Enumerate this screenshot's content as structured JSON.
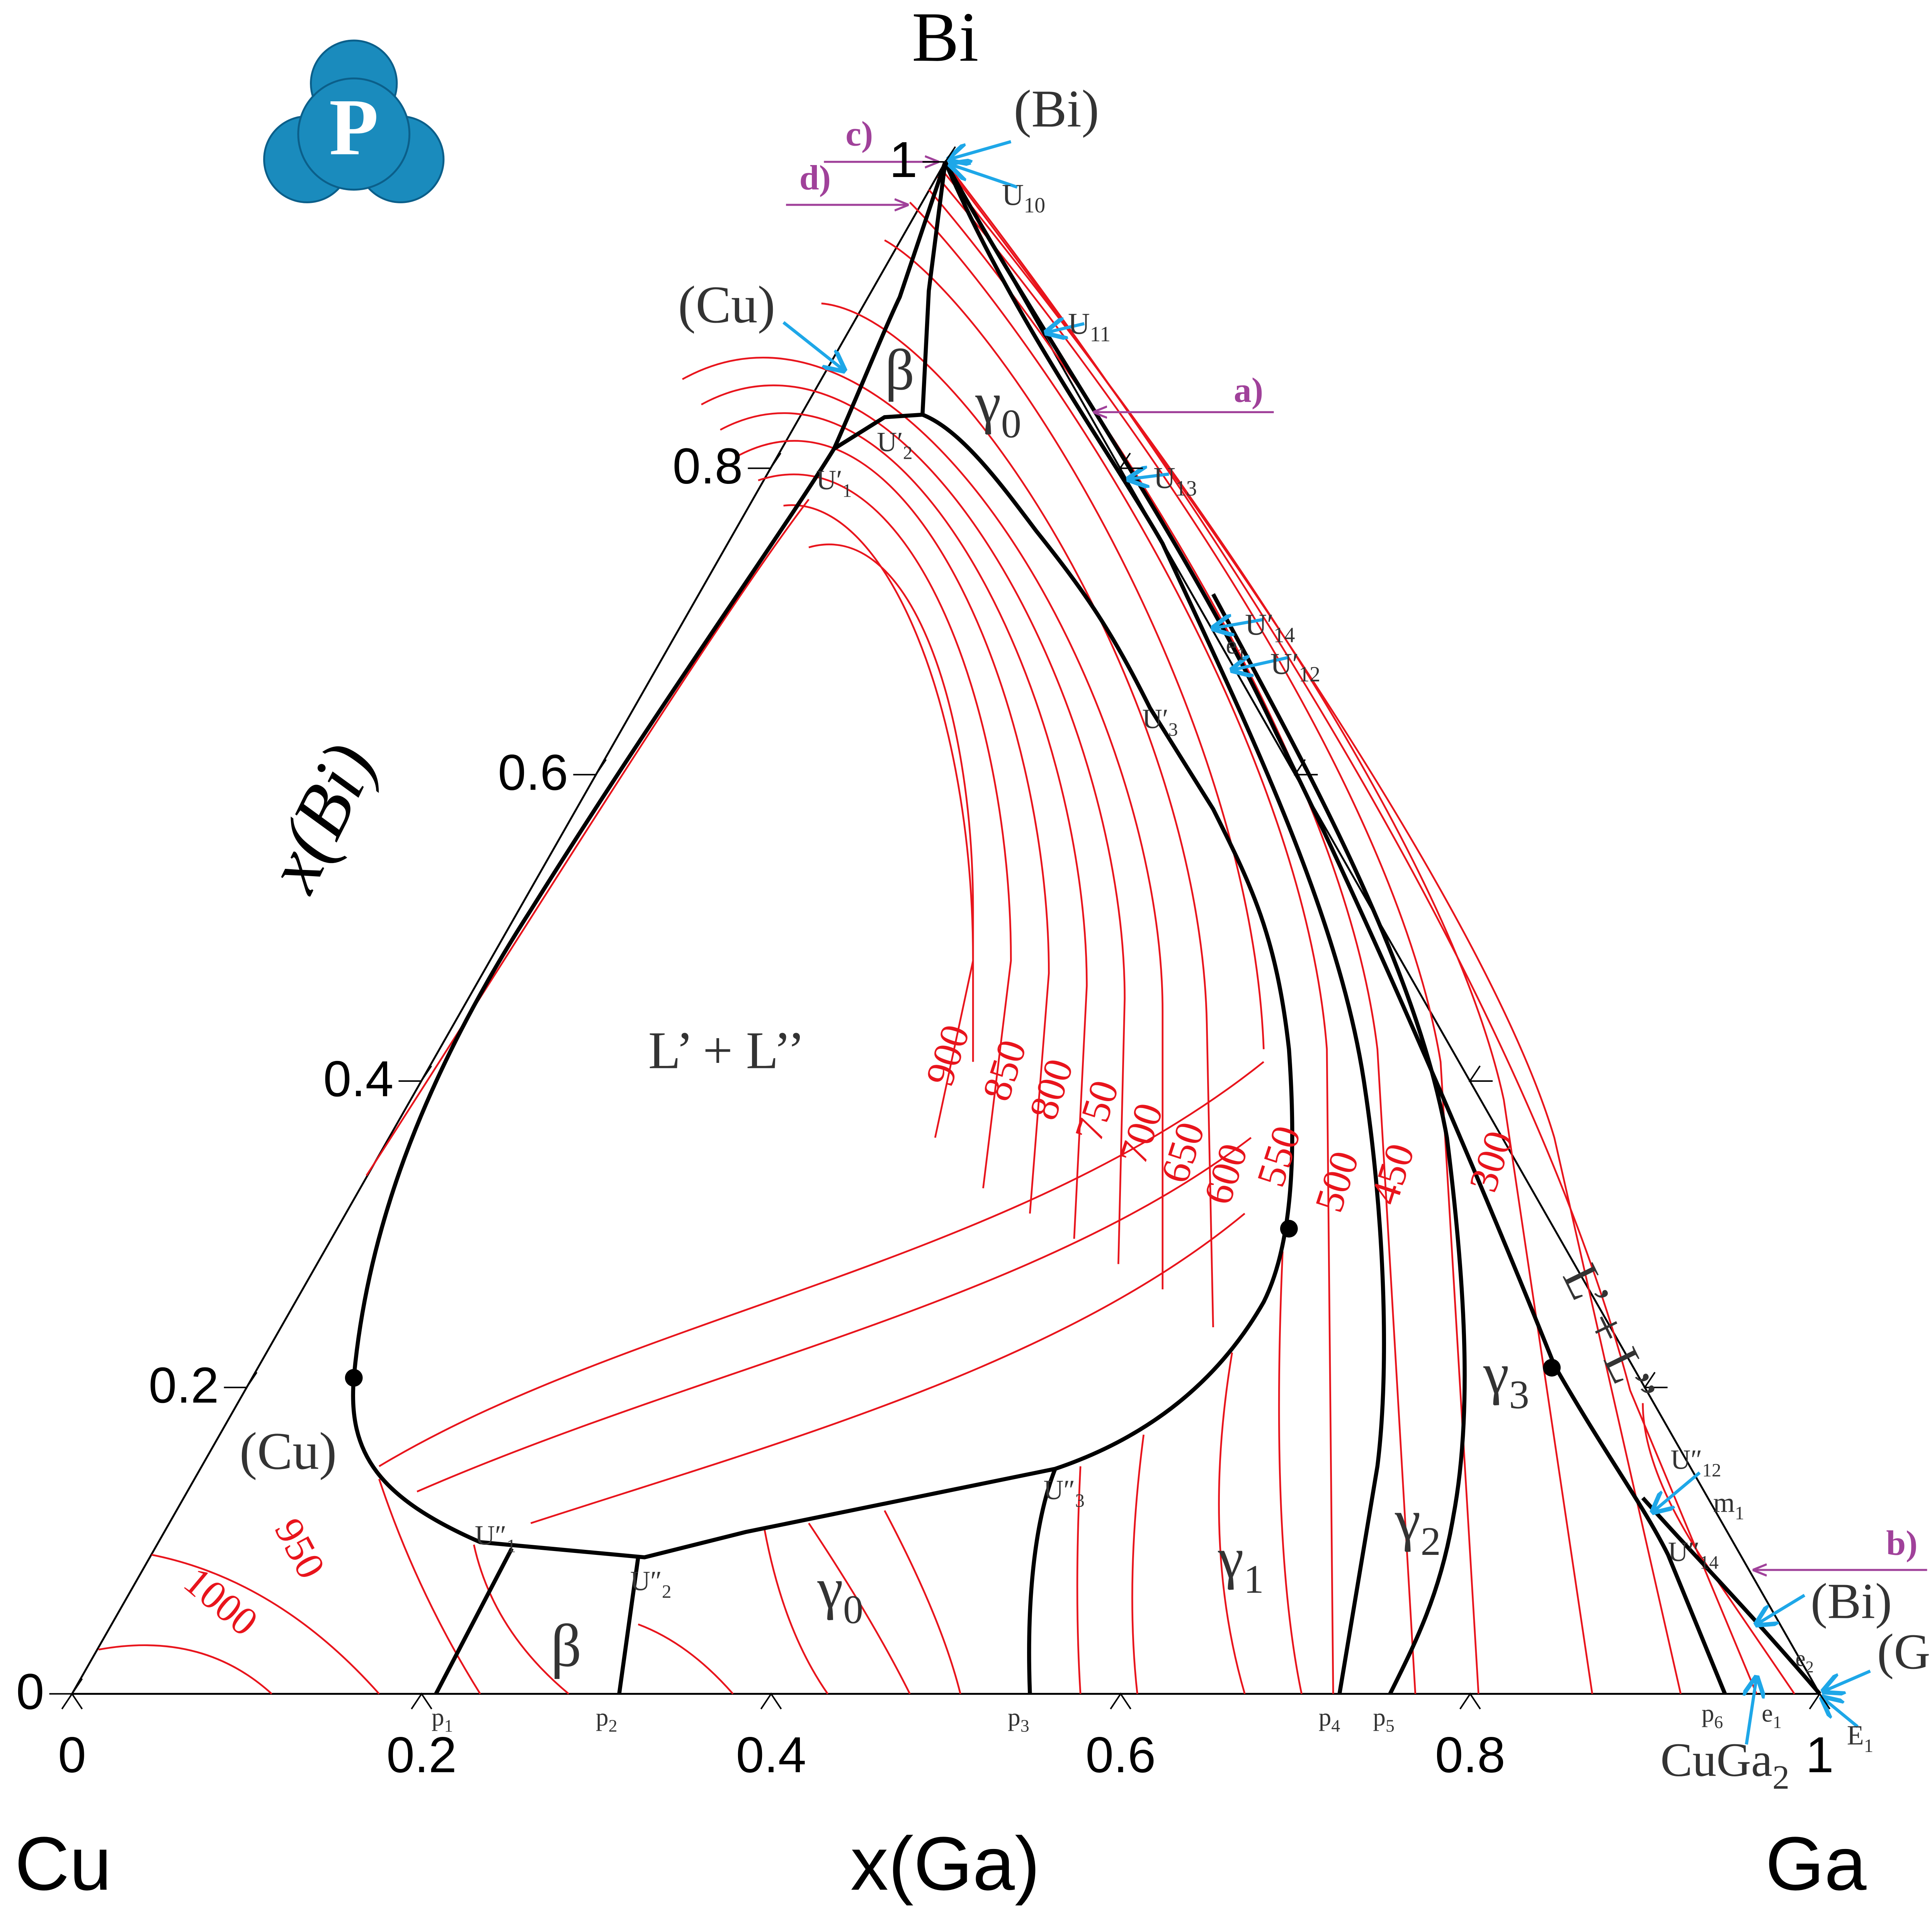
{
  "logo": "P",
  "corners": {
    "top": "Bi",
    "left": "Cu",
    "right": "Ga"
  },
  "axes": {
    "left_title": "x(Bi)",
    "bottom_title": "x(Ga)"
  },
  "left_ticks": [
    "0",
    "0.2",
    "0.4",
    "0.6",
    "0.8",
    "1"
  ],
  "bottom_ticks": [
    "0",
    "0.2",
    "0.4",
    "0.6",
    "0.8",
    "1"
  ],
  "isotherms": [
    "1000",
    "950",
    "900",
    "850",
    "800",
    "750",
    "700",
    "650",
    "600",
    "550",
    "500",
    "450",
    "300"
  ],
  "section_markers": [
    "a)",
    "b)",
    "c)",
    "d)"
  ],
  "labels": [
    {
      "text": "(Bi)"
    },
    {
      "text": "U",
      "sub": "10"
    },
    {
      "text": "U",
      "sub": "11"
    },
    {
      "text": "U",
      "sub": "13"
    },
    {
      "text": "U′",
      "sub": "14"
    },
    {
      "text": "e",
      "sub": "1"
    },
    {
      "text": "U′",
      "sub": "12"
    },
    {
      "text": "(Cu)"
    },
    {
      "text": "β"
    },
    {
      "text": "γ",
      "sub": "0"
    },
    {
      "text": "U′",
      "sub": "2"
    },
    {
      "text": "U′",
      "sub": "1"
    },
    {
      "text": "U′",
      "sub": "3"
    },
    {
      "text": "L’ + L’’"
    },
    {
      "text": "(Cu)"
    },
    {
      "text": "U″",
      "sub": "1"
    },
    {
      "text": "U″",
      "sub": "2"
    },
    {
      "text": "U″",
      "sub": "3"
    },
    {
      "text": "β"
    },
    {
      "text": "γ",
      "sub": "0"
    },
    {
      "text": "γ",
      "sub": "1"
    },
    {
      "text": "γ",
      "sub": "2"
    },
    {
      "text": "γ",
      "sub": "3"
    },
    {
      "text": "L’ + L’’"
    },
    {
      "text": "U″",
      "sub": "12"
    },
    {
      "text": "m",
      "sub": "1"
    },
    {
      "text": "U″",
      "sub": "14"
    },
    {
      "text": "(Bi)"
    },
    {
      "text": "e",
      "sub": "2"
    },
    {
      "text": "(Ga)"
    },
    {
      "text": "p",
      "sub": "1"
    },
    {
      "text": "p",
      "sub": "2"
    },
    {
      "text": "p",
      "sub": "3"
    },
    {
      "text": "p",
      "sub": "4"
    },
    {
      "text": "p",
      "sub": "5"
    },
    {
      "text": "p",
      "sub": "6"
    },
    {
      "text": "e",
      "sub": "1"
    },
    {
      "text": "E",
      "sub": "1"
    },
    {
      "text": "CuGa",
      "sub": "2"
    }
  ]
}
